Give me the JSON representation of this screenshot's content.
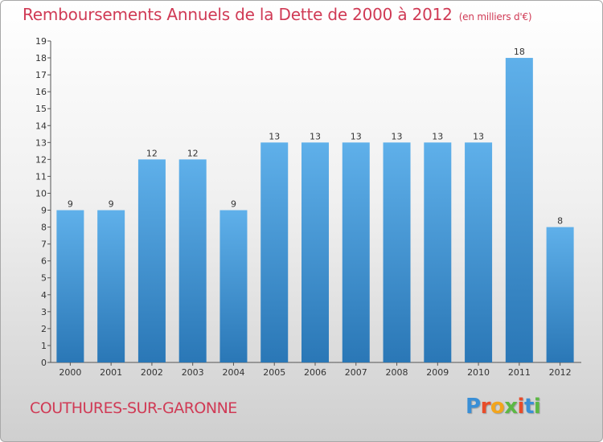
{
  "header": {
    "title": "Remboursements Annuels de la Dette de 2000 à 2012",
    "unit": "(en milliers d'€)"
  },
  "footer": {
    "commune": "COUTHURES-SUR-GARONNE",
    "logo": "Proxiti",
    "logo_colors": [
      "#3a8fd6",
      "#e84c2a",
      "#f3a51c",
      "#5cb844",
      "#e84c2a",
      "#3a8fd6",
      "#5cb844"
    ]
  },
  "colors": {
    "title": "#d03a55",
    "bar_light": "#5fb0ea",
    "bar_dark": "#2a77b6"
  },
  "chart_data": {
    "type": "bar",
    "categories": [
      "2000",
      "2001",
      "2002",
      "2003",
      "2004",
      "2005",
      "2006",
      "2007",
      "2008",
      "2009",
      "2010",
      "2011",
      "2012"
    ],
    "values": [
      9,
      9,
      12,
      12,
      9,
      13,
      13,
      13,
      13,
      13,
      13,
      18,
      8
    ],
    "data_labels": [
      "9",
      "9",
      "12",
      "12",
      "9",
      "13",
      "13",
      "13",
      "13",
      "13",
      "13",
      "18",
      "8"
    ],
    "ylim": [
      0,
      19
    ],
    "y_ticks": [
      0,
      1,
      2,
      3,
      4,
      5,
      6,
      7,
      8,
      9,
      10,
      11,
      12,
      13,
      14,
      15,
      16,
      17,
      18,
      19
    ],
    "grid": false,
    "legend": "none",
    "xlabel": "",
    "ylabel": ""
  }
}
